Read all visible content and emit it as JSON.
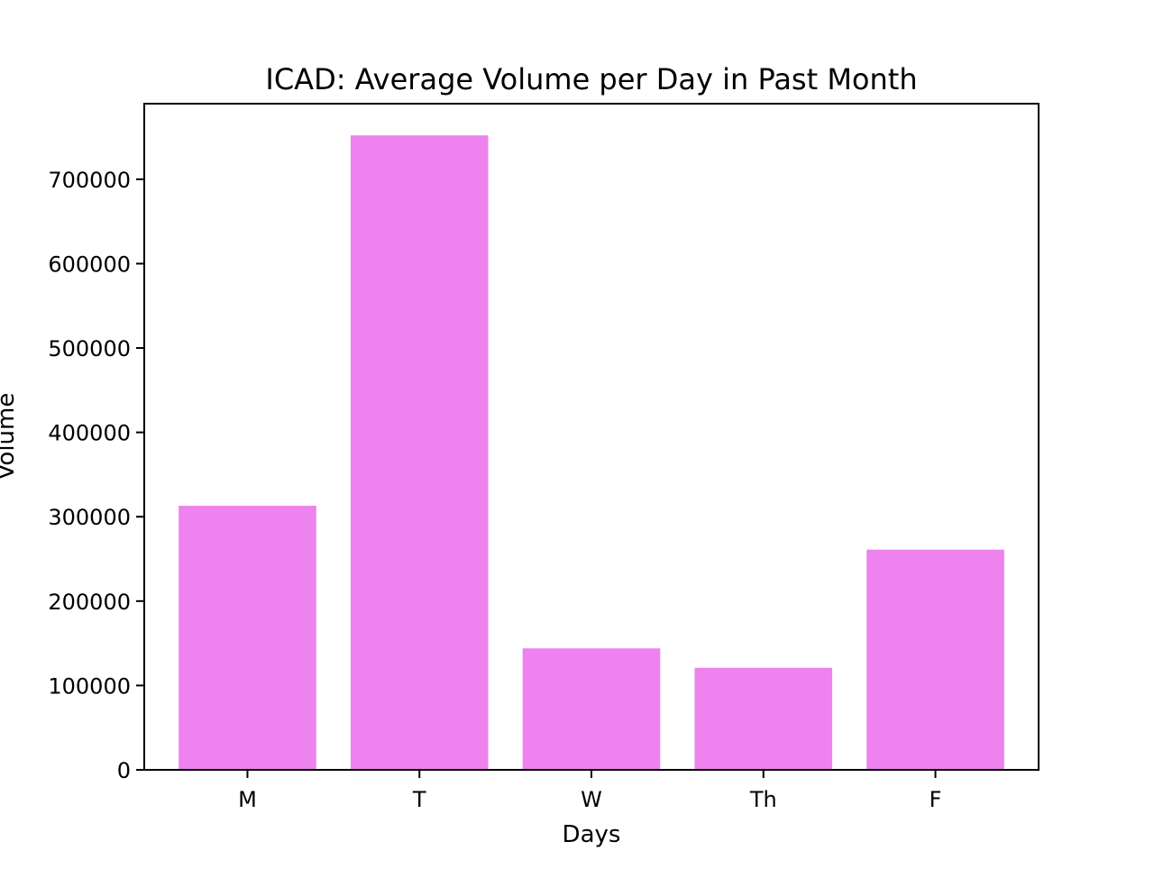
{
  "chart_data": {
    "type": "bar",
    "title": "ICAD: Average Volume per Day in Past Month",
    "xlabel": "Days",
    "ylabel": "Volume",
    "categories": [
      "M",
      "T",
      "W",
      "Th",
      "F"
    ],
    "values": [
      313000,
      752000,
      144000,
      121000,
      261000
    ],
    "ylim": [
      0,
      789600
    ],
    "yticks": [
      0,
      100000,
      200000,
      300000,
      400000,
      500000,
      600000,
      700000
    ],
    "ytick_labels": [
      "0",
      "100000",
      "200000",
      "300000",
      "400000",
      "500000",
      "600000",
      "700000"
    ],
    "bar_color": "#ee82ee",
    "grid": false,
    "legend": "none"
  }
}
